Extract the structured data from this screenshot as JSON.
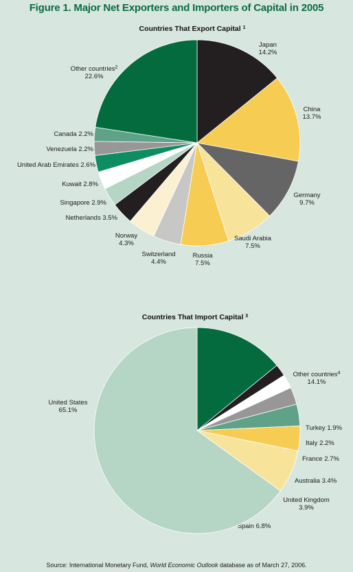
{
  "figure": {
    "title": "Figure 1. Major Net Exporters and Importers of Capital in 2005",
    "source_prefix": "Source: International Monetary Fund, ",
    "source_italic": "World Economic Outlook",
    "source_suffix": " database as of March 27, 2006."
  },
  "colors": {
    "background": "#d7e6de",
    "title": "#0a6b45",
    "dark_green": "#036b3e",
    "black": "#231f20",
    "gold": "#f6cc52",
    "dark_gray": "#656565",
    "light_gold": "#f8e39b",
    "light_gray": "#c7c8c6",
    "cream": "#fbf1d2",
    "pale_green": "#b6d6c5",
    "white": "#ffffff",
    "teal": "#0e8c62",
    "mid_gray": "#979797",
    "sage": "#5fa287"
  },
  "chart_data": [
    {
      "type": "pie",
      "title": "Countries That Export Capital",
      "title_sup": "1",
      "slices": [
        {
          "label": "Japan",
          "value": 14.2,
          "value_text": "14.2%",
          "color": "#231f20"
        },
        {
          "label": "China",
          "value": 13.7,
          "value_text": "13.7%",
          "color": "#f6cc52"
        },
        {
          "label": "Germany",
          "value": 9.7,
          "value_text": "9.7%",
          "color": "#656565"
        },
        {
          "label": "Saudi Arabia",
          "value": 7.5,
          "value_text": "7.5%",
          "color": "#f8e39b"
        },
        {
          "label": "Russia",
          "value": 7.5,
          "value_text": "7.5%",
          "color": "#f6cc52"
        },
        {
          "label": "Switzerland",
          "value": 4.4,
          "value_text": "4.4%",
          "color": "#c7c8c6"
        },
        {
          "label": "Norway",
          "value": 4.3,
          "value_text": "4.3%",
          "color": "#fbf1d2"
        },
        {
          "label": "Netherlands",
          "value": 3.5,
          "value_text": "3.5%",
          "color": "#231f20"
        },
        {
          "label": "Singapore",
          "value": 2.9,
          "value_text": "2.9%",
          "color": "#b6d6c5"
        },
        {
          "label": "Kuwait",
          "value": 2.8,
          "value_text": "2.8%",
          "color": "#ffffff"
        },
        {
          "label": "United Arab Emirates",
          "value": 2.6,
          "value_text": "2.6%",
          "color": "#0e8c62"
        },
        {
          "label": "Venezuela",
          "value": 2.2,
          "value_text": "2.2%",
          "color": "#979797"
        },
        {
          "label": "Canada",
          "value": 2.2,
          "value_text": "2.2%",
          "color": "#5fa287"
        },
        {
          "label": "Other countries",
          "label_sup": "2",
          "value": 22.6,
          "value_text": "22.6%",
          "color": "#036b3e"
        }
      ]
    },
    {
      "type": "pie",
      "title": "Countries That Import Capital",
      "title_sup": "3",
      "slices": [
        {
          "label": "Other countries",
          "label_sup": "4",
          "value": 14.1,
          "value_text": "14.1%",
          "color": "#036b3e"
        },
        {
          "label": "Turkey",
          "value": 1.9,
          "value_text": "1.9%",
          "color": "#231f20"
        },
        {
          "label": "Italy",
          "value": 2.2,
          "value_text": "2.2%",
          "color": "#ffffff"
        },
        {
          "label": "France",
          "value": 2.7,
          "value_text": "2.7%",
          "color": "#979797"
        },
        {
          "label": "Australia",
          "value": 3.4,
          "value_text": "3.4%",
          "color": "#5fa287"
        },
        {
          "label": "United Kingdom",
          "value": 3.9,
          "value_text": "3.9%",
          "color": "#f6cc52"
        },
        {
          "label": "Spain",
          "value": 6.8,
          "value_text": "6.8%",
          "color": "#f8e39b"
        },
        {
          "label": "United States",
          "value": 65.1,
          "value_text": "65.1%",
          "color": "#b6d6c5"
        }
      ]
    }
  ]
}
